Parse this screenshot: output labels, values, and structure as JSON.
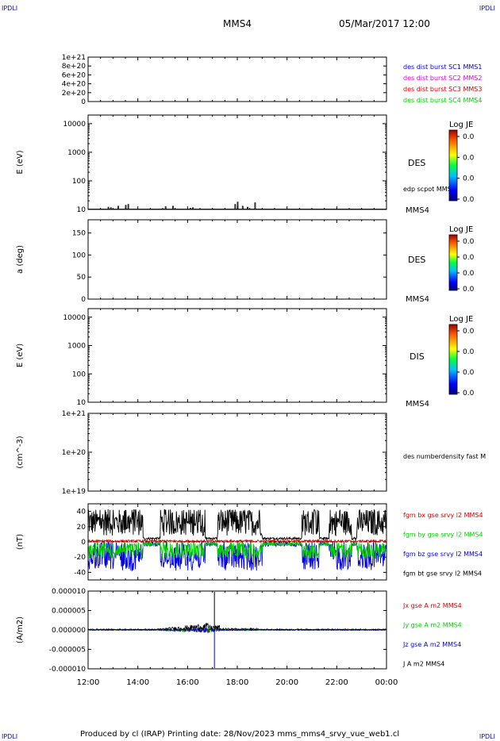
{
  "header": {
    "corner_label": "IPDLI",
    "spacecraft": "MMS4",
    "datetime": "05/Mar/2017 12:00"
  },
  "footer": {
    "text": "Produced by cl (IRAP)   Printing date: 28/Nov/2023   mms_mms4_srvy_vue_web1.cl"
  },
  "colors": {
    "red": "#e00000",
    "green": "#00d000",
    "blue": "#0000e0",
    "magenta": "#e000e0",
    "black": "#000000"
  },
  "time_axis": {
    "ticks": [
      "12:00",
      "14:00",
      "16:00",
      "18:00",
      "20:00",
      "22:00",
      "00:00"
    ],
    "range_hours": [
      12,
      24
    ]
  },
  "colorbar": {
    "title": "Log JE",
    "ticks": [
      "0.0",
      "0.0",
      "0.0",
      "0.0"
    ]
  },
  "chart_data": [
    {
      "type": "line",
      "panel": "des-dist-burst",
      "ylabel": "",
      "yticks": [
        "1e+21",
        "8e+20",
        "6e+20",
        "4e+20",
        "2e+20",
        "0"
      ],
      "ylim": [
        0,
        1e+21
      ],
      "series": [
        {
          "name": "des dist burst SC1 MMS1",
          "color": "#0000e0"
        },
        {
          "name": "des dist burst SC2 MMS2",
          "color": "#e000e0"
        },
        {
          "name": "des dist burst SC3 MMS3",
          "color": "#e00000"
        },
        {
          "name": "des dist burst SC4 MMS4",
          "color": "#00d000"
        }
      ],
      "values": [
        0,
        0
      ]
    },
    {
      "type": "heatmap",
      "panel": "des-energy",
      "ylabel": "E (eV)",
      "scale": "log",
      "yticks": [
        "10000",
        "1000",
        "100",
        "10"
      ],
      "ylim": [
        10,
        20000
      ],
      "label": "DES",
      "line_label": "edp scpot MMS4",
      "sc_label": "MMS4",
      "scpot_spikes": [
        {
          "t": 12.8,
          "v": 12
        },
        {
          "t": 12.9,
          "v": 11.5
        },
        {
          "t": 13.2,
          "v": 13
        },
        {
          "t": 13.5,
          "v": 14
        },
        {
          "t": 13.6,
          "v": 15
        },
        {
          "t": 15.1,
          "v": 12.5
        },
        {
          "t": 15.4,
          "v": 13
        },
        {
          "t": 16.1,
          "v": 11
        },
        {
          "t": 16.2,
          "v": 11.5
        },
        {
          "t": 17.9,
          "v": 15
        },
        {
          "t": 18.0,
          "v": 18
        },
        {
          "t": 18.2,
          "v": 13
        },
        {
          "t": 18.4,
          "v": 12
        },
        {
          "t": 18.7,
          "v": 17
        }
      ]
    },
    {
      "type": "heatmap",
      "panel": "des-pitch",
      "ylabel": "a (deg)",
      "scale": "linear",
      "yticks": [
        "150",
        "100",
        "50",
        "0"
      ],
      "ylim": [
        0,
        180
      ],
      "label": "DES",
      "sc_label": "MMS4"
    },
    {
      "type": "heatmap",
      "panel": "dis-energy",
      "ylabel": "E (eV)",
      "scale": "log",
      "yticks": [
        "10000",
        "1000",
        "100",
        "10"
      ],
      "ylim": [
        10,
        20000
      ],
      "label": "DIS",
      "sc_label": "MMS4"
    },
    {
      "type": "line",
      "panel": "numberdensity",
      "ylabel": "(cm^-3)",
      "scale": "log",
      "yticks": [
        "1e+21",
        "1e+20",
        "1e+19"
      ],
      "ylim": [
        1e+19,
        1e+21
      ],
      "series": [
        {
          "name": "des numberdensity fast M",
          "color": "#000000"
        }
      ]
    },
    {
      "type": "line",
      "panel": "fgm-b",
      "ylabel": "(nT)",
      "yticks": [
        "40",
        "20",
        "0",
        "-20",
        "-40"
      ],
      "ylim": [
        -50,
        50
      ],
      "series": [
        {
          "name": "fgm bx gse srvy l2 MMS4",
          "color": "#e00000",
          "base": 2,
          "amp": 2
        },
        {
          "name": "fgm by gse srvy l2 MMS4",
          "color": "#00d000",
          "base": -3,
          "amp": 14
        },
        {
          "name": "fgm bz gse srvy l2 MMS4",
          "color": "#0000e0",
          "base": -5,
          "amp": 30
        },
        {
          "name": "fgm bt gse srvy l2 MMS4",
          "color": "#000000",
          "base": 10,
          "amp": 35
        }
      ]
    },
    {
      "type": "line",
      "panel": "current-density",
      "ylabel": "(A/m2)",
      "yticks": [
        "0.000010",
        "0.000005",
        "0.000000",
        "-0.000005",
        "-0.000010"
      ],
      "ylim": [
        -1e-05,
        1e-05
      ],
      "series": [
        {
          "name": "Jx gse A m2 MMS4",
          "color": "#e00000"
        },
        {
          "name": "Jy gse A m2 MMS4",
          "color": "#00d000"
        },
        {
          "name": "Jz gse A m2 MMS4",
          "color": "#0000e0"
        },
        {
          "name": "J A m2 MMS4",
          "color": "#000000"
        }
      ],
      "spike": {
        "t": 17.08,
        "max": 9.8e-06,
        "min": -9.8e-06
      }
    }
  ]
}
